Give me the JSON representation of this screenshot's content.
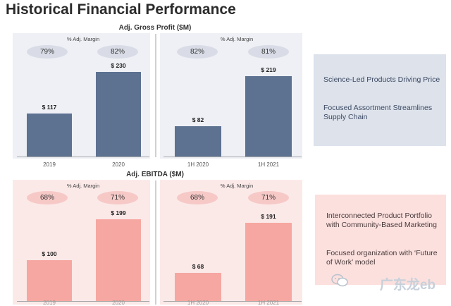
{
  "page_title": "Historical Financial Performance",
  "notes": {
    "top": [
      "Science-Led Products Driving Price",
      "Focused Assortment Streamlines Supply Chain"
    ],
    "bottom": [
      "Interconnected Product Portfolio with Community-Based Marketing",
      "Focused organization with ‘Future of Work’ model"
    ]
  },
  "watermark": "广东龙eb",
  "colors": {
    "blue_bar": "#5d7191",
    "pink_bar": "#f6a7a1",
    "blue_pill": "#d9dce6",
    "pink_pill": "#f6c9c7",
    "blue_box": "#dde2eb",
    "pink_box": "#fbe0de"
  },
  "chart_data": [
    {
      "type": "bar",
      "title": "Adj. Gross Profit ($M)",
      "panels": [
        {
          "margin_label": "% Adj. Margin",
          "categories": [
            "2019",
            "2020"
          ],
          "values": [
            117,
            230
          ],
          "value_labels": [
            "$ 117",
            "$ 230"
          ],
          "margins": [
            "79%",
            "82%"
          ]
        },
        {
          "margin_label": "% Adj. Margin",
          "categories": [
            "1H 2020",
            "1H 2021"
          ],
          "values": [
            82,
            219
          ],
          "value_labels": [
            "$ 82",
            "$ 219"
          ],
          "margins": [
            "82%",
            "81%"
          ]
        }
      ]
    },
    {
      "type": "bar",
      "title": "Adj. EBITDA ($M)",
      "panels": [
        {
          "margin_label": "% Adj. Margin",
          "categories": [
            "2019",
            "2020"
          ],
          "values": [
            100,
            199
          ],
          "value_labels": [
            "$ 100",
            "$ 199"
          ],
          "margins": [
            "68%",
            "71%"
          ]
        },
        {
          "margin_label": "% Adj. Margin",
          "categories": [
            "1H 2020",
            "1H 2021"
          ],
          "values": [
            68,
            191
          ],
          "value_labels": [
            "$ 68",
            "$ 191"
          ],
          "margins": [
            "68%",
            "71%"
          ]
        }
      ]
    }
  ]
}
